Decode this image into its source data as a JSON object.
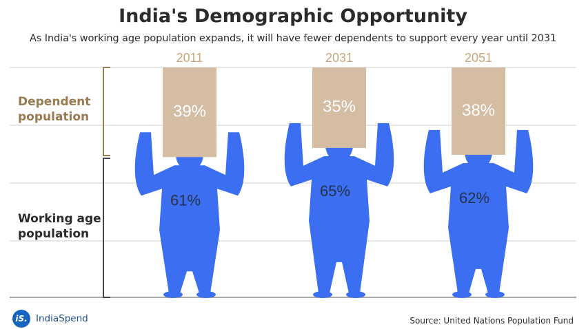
{
  "title": "India's Demographic Opportunity",
  "subtitle": "As India's working age population expands, it will have fewer dependents to support every year until 2031",
  "labels": {
    "dependent_line1": "Dependent",
    "dependent_line2": "population",
    "working_line1": "Working age",
    "working_line2": "population"
  },
  "logo": {
    "badge": "iS.",
    "name": "IndiaSpend"
  },
  "source": "Source: United Nations Population Fund",
  "colors": {
    "box": "#d4bda2",
    "figure": "#3b6ef0",
    "year": "#c8a67d",
    "dependent_label": "#9b7a52",
    "grid": "#cfcfcf"
  },
  "chart_data": {
    "type": "bar",
    "categories": [
      "2011",
      "2031",
      "2051"
    ],
    "series": [
      {
        "name": "Dependent population",
        "values": [
          39,
          35,
          38
        ],
        "labels": [
          "39%",
          "35%",
          "38%"
        ]
      },
      {
        "name": "Working age population",
        "values": [
          61,
          65,
          62
        ],
        "labels": [
          "61%",
          "65%",
          "62%"
        ]
      }
    ],
    "ylim": [
      0,
      100
    ],
    "grid": true
  }
}
